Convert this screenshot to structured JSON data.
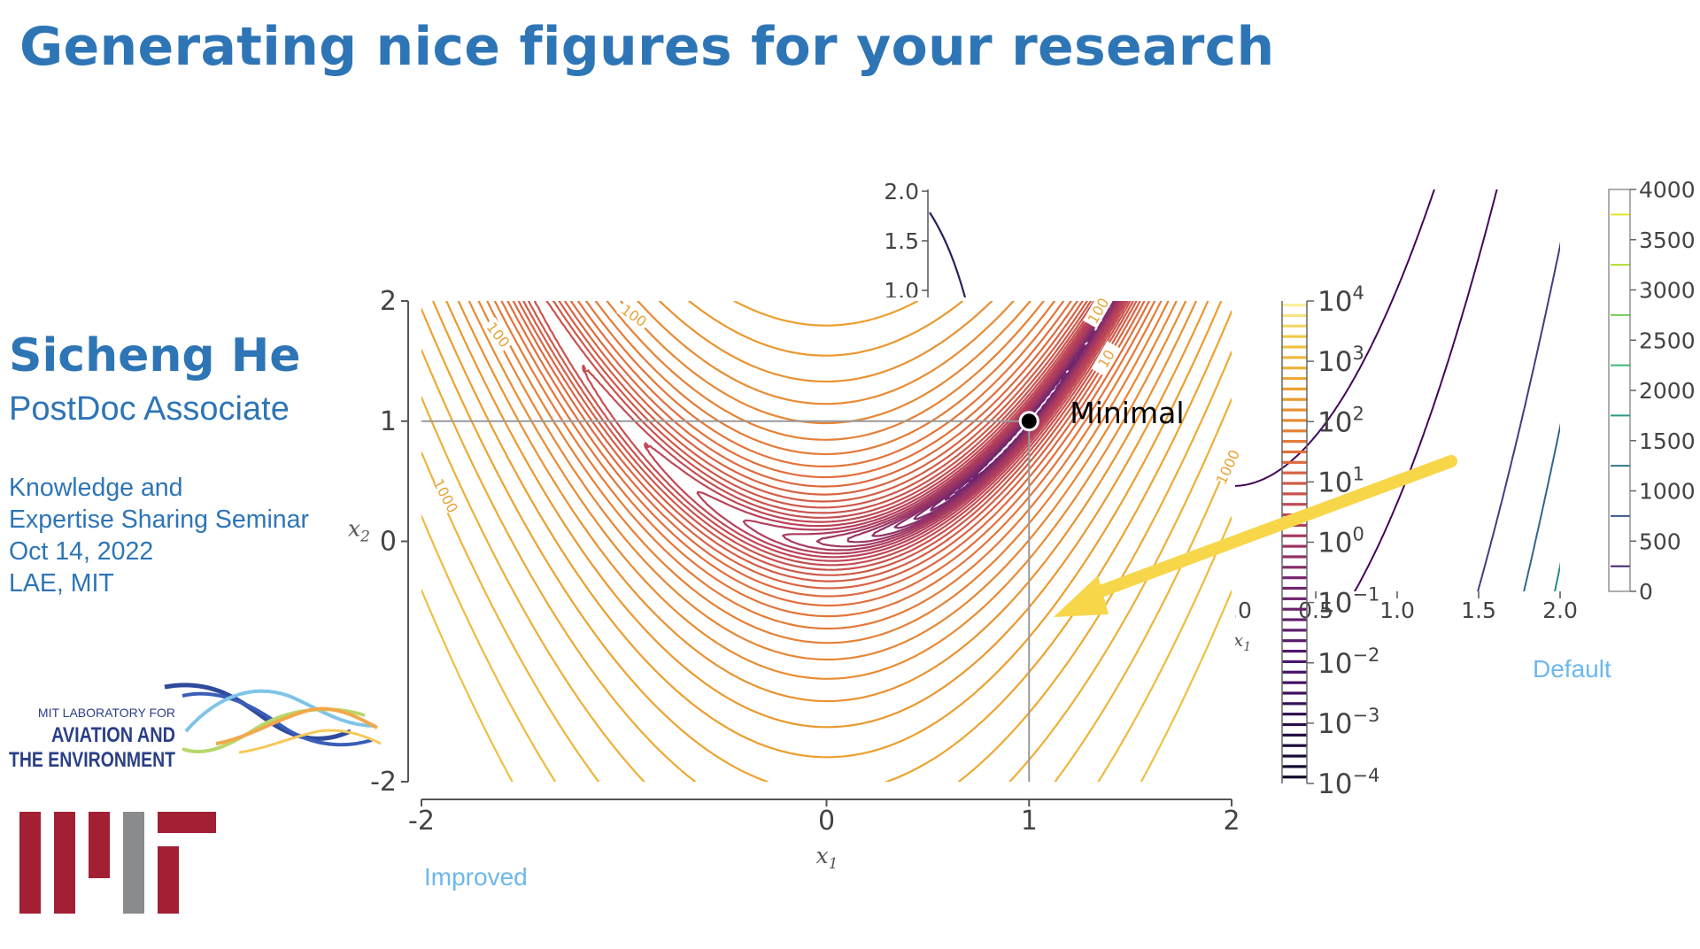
{
  "slide": {
    "title": "Generating nice figures for your research",
    "speaker": {
      "name": "Sicheng He",
      "role": "PostDoc Associate"
    },
    "event": {
      "lines": [
        "Knowledge and",
        "Expertise Sharing Seminar",
        "Oct 14, 2022",
        "LAE, MIT"
      ]
    },
    "labels": {
      "improved": "Improved",
      "default": "Default"
    },
    "logos": {
      "lae": {
        "line1": "MIT LABORATORY FOR",
        "line2": "AVIATION AND",
        "line3": "THE ENVIRONMENT"
      }
    },
    "colors": {
      "title_blue": "#2e75b6",
      "label_blue": "#6db8ec",
      "arrow_yellow": "#f7d64a",
      "mit_red": "#a31f34",
      "mit_gray": "#8a8b8c"
    }
  },
  "chart_data": [
    {
      "id": "improved",
      "type": "contour",
      "function": "rosenbrock",
      "title": "",
      "xlabel": "x1",
      "ylabel": "x2",
      "xlim": [
        -2,
        2
      ],
      "ylim": [
        -2,
        2
      ],
      "xticks": [
        "-2",
        "0",
        "1",
        "2"
      ],
      "yticks": [
        "-2",
        "0",
        "1",
        "2"
      ],
      "colormap": "inferno_r (log scale)",
      "grid": false,
      "colorbar": {
        "scale": "log",
        "ticks": [
          {
            "base": "10",
            "exp": "4"
          },
          {
            "base": "10",
            "exp": "3"
          },
          {
            "base": "10",
            "exp": "2"
          },
          {
            "base": "10",
            "exp": "1"
          },
          {
            "base": "10",
            "exp": "0"
          },
          {
            "base": "10",
            "exp": "−1"
          },
          {
            "base": "10",
            "exp": "−2"
          },
          {
            "base": "10",
            "exp": "−3"
          },
          {
            "base": "10",
            "exp": "−4"
          }
        ]
      },
      "contour_labels": [
        {
          "text": "100",
          "x": -1.62,
          "y": 1.72,
          "angle": 52
        },
        {
          "text": "100",
          "x": -0.95,
          "y": 1.88,
          "angle": 35
        },
        {
          "text": "1000",
          "x": -1.88,
          "y": 0.38,
          "angle": 62
        },
        {
          "text": "1000",
          "x": 1.98,
          "y": 0.62,
          "angle": -65
        },
        {
          "text": "100",
          "x": 1.34,
          "y": 1.92,
          "angle": -60
        },
        {
          "text": "10",
          "x": 1.38,
          "y": 1.52,
          "angle": -60
        }
      ],
      "annotation": {
        "text": "Minimal",
        "x": 1,
        "y": 1
      }
    },
    {
      "id": "default",
      "type": "contour",
      "function": "rosenbrock",
      "title": "",
      "xlabel": "x1",
      "xlim": [
        0,
        2
      ],
      "xticks_visible": [
        "0.0",
        "0.5",
        "1.0",
        "1.5",
        "2.0"
      ],
      "inset_yticks": [
        "2.0",
        "1.5",
        "1.0"
      ],
      "colormap": "viridis",
      "colorbar": {
        "ticks": [
          "4000",
          "3500",
          "3000",
          "2500",
          "2000",
          "1500",
          "1000",
          "500",
          "0"
        ]
      }
    }
  ]
}
